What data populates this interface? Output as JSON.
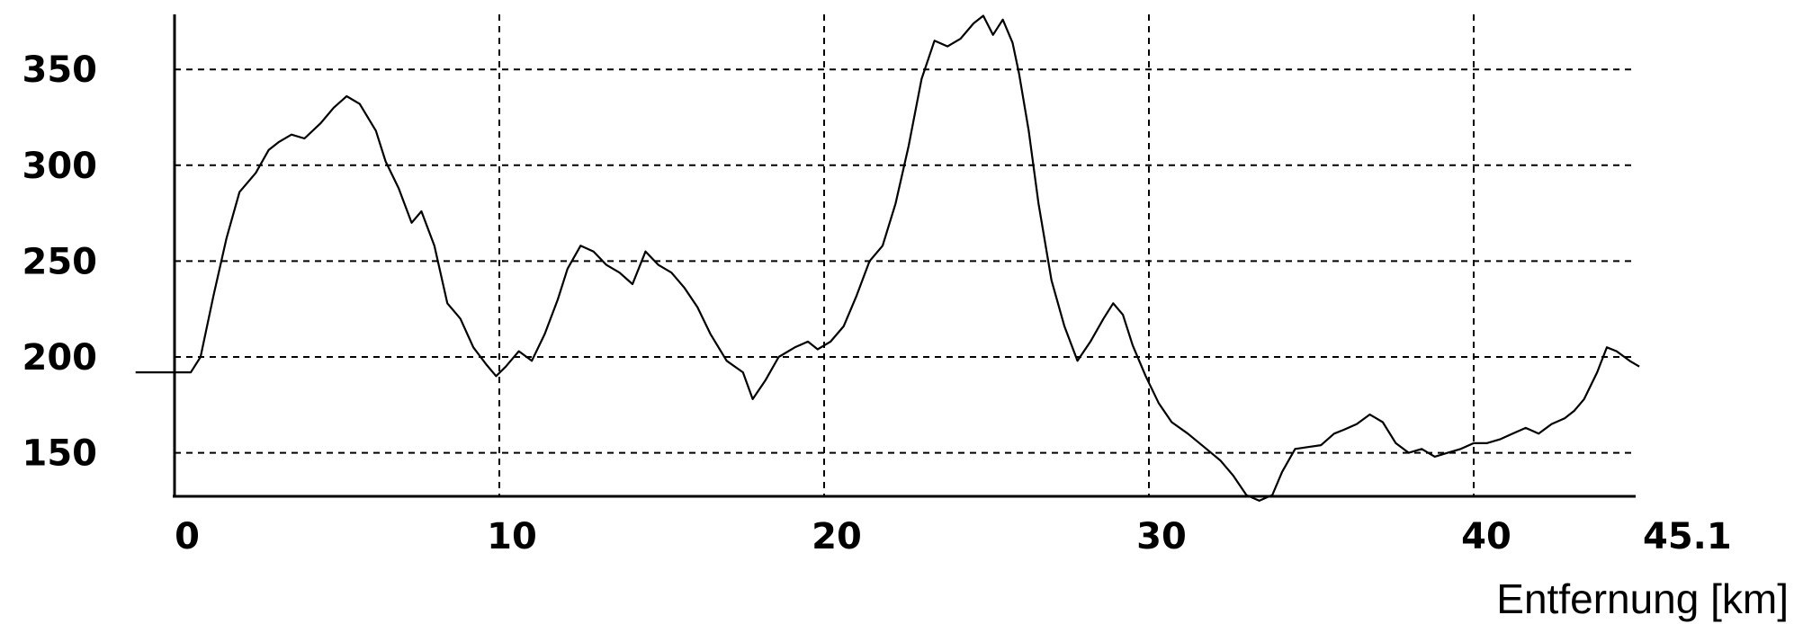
{
  "chart_data": {
    "type": "line",
    "xlabel": "Entfernung [km]",
    "ylabel": "",
    "xlim": [
      0,
      45.1
    ],
    "ylim": [
      125,
      380
    ],
    "x_ticks": [
      {
        "value": 0,
        "label": "0"
      },
      {
        "value": 10,
        "label": "10"
      },
      {
        "value": 20,
        "label": "20"
      },
      {
        "value": 30,
        "label": "30"
      },
      {
        "value": 40,
        "label": "40"
      },
      {
        "value": 45.1,
        "label": "45.1"
      }
    ],
    "y_ticks": [
      {
        "value": 350,
        "label": "350"
      },
      {
        "value": 300,
        "label": "300"
      },
      {
        "value": 250,
        "label": "250"
      },
      {
        "value": 200,
        "label": "200"
      },
      {
        "value": 150,
        "label": "150"
      }
    ],
    "grid": "dashed",
    "x": [
      -1.2,
      0.0,
      0.5,
      0.8,
      1.2,
      1.6,
      2.0,
      2.5,
      2.9,
      3.2,
      3.6,
      4.0,
      4.5,
      4.9,
      5.3,
      5.7,
      6.2,
      6.5,
      6.9,
      7.3,
      7.6,
      8.0,
      8.4,
      8.8,
      9.2,
      9.6,
      9.9,
      10.2,
      10.6,
      11.0,
      11.4,
      11.8,
      12.1,
      12.5,
      12.9,
      13.3,
      13.7,
      14.1,
      14.5,
      14.9,
      15.3,
      15.7,
      16.1,
      16.5,
      17.0,
      17.5,
      17.8,
      18.2,
      18.6,
      19.1,
      19.5,
      19.8,
      20.2,
      20.6,
      21.0,
      21.4,
      21.8,
      22.2,
      22.6,
      23.0,
      23.4,
      23.8,
      24.2,
      24.6,
      24.9,
      25.2,
      25.5,
      25.8,
      26.0,
      26.3,
      26.6,
      27.0,
      27.4,
      27.8,
      28.2,
      28.6,
      28.9,
      29.2,
      29.5,
      29.9,
      30.3,
      30.7,
      31.2,
      31.7,
      32.2,
      32.6,
      33.0,
      33.4,
      33.8,
      34.1,
      34.5,
      34.9,
      35.3,
      35.7,
      36.0,
      36.4,
      36.8,
      37.2,
      37.6,
      38.0,
      38.4,
      38.8,
      39.2,
      39.6,
      40.0,
      40.4,
      40.8,
      41.2,
      41.6,
      42.0,
      42.4,
      42.8,
      43.1,
      43.4,
      43.8,
      44.1,
      44.4,
      44.8,
      45.1
    ],
    "series": [
      {
        "values": [
          192,
          192,
          192,
          200,
          232,
          262,
          286,
          296,
          308,
          312,
          316,
          314,
          322,
          330,
          336,
          332,
          318,
          302,
          288,
          270,
          276,
          258,
          228,
          220,
          205,
          196,
          190,
          195,
          203,
          198,
          212,
          230,
          246,
          258,
          255,
          248,
          244,
          238,
          255,
          248,
          244,
          236,
          226,
          212,
          198,
          192,
          178,
          188,
          200,
          205,
          208,
          204,
          208,
          216,
          232,
          250,
          258,
          280,
          310,
          345,
          365,
          362,
          366,
          374,
          378,
          368,
          376,
          364,
          348,
          318,
          280,
          240,
          216,
          198,
          208,
          220,
          228,
          222,
          206,
          190,
          176,
          166,
          160,
          153,
          146,
          138,
          128,
          125,
          128,
          140,
          152,
          153,
          154,
          160,
          162,
          165,
          170,
          166,
          155,
          150,
          152,
          148,
          150,
          152,
          155,
          155,
          157,
          160,
          163,
          160,
          165,
          168,
          172,
          178,
          192,
          205,
          203,
          198,
          195
        ]
      }
    ]
  }
}
